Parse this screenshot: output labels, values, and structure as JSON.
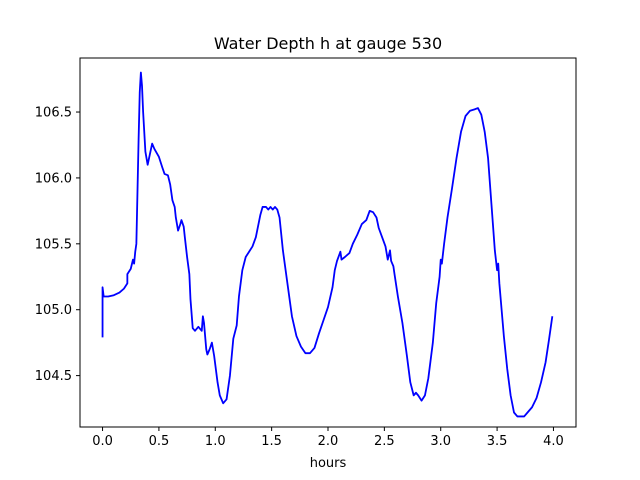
{
  "chart_data": {
    "type": "line",
    "title": "Water Depth h at gauge 530",
    "xlabel": "hours",
    "ylabel": "",
    "xlim": [
      -0.2,
      4.2
    ],
    "ylim": [
      104.11,
      106.91
    ],
    "xticks": [
      0.0,
      0.5,
      1.0,
      1.5,
      2.0,
      2.5,
      3.0,
      3.5,
      4.0
    ],
    "xtick_labels": [
      "0.0",
      "0.5",
      "1.0",
      "1.5",
      "2.0",
      "2.5",
      "3.0",
      "3.5",
      "4.0"
    ],
    "yticks": [
      104.5,
      105.0,
      105.5,
      106.0,
      106.5
    ],
    "ytick_labels": [
      "104.5",
      "105.0",
      "105.5",
      "106.0",
      "106.5"
    ],
    "grid": false,
    "series": [
      {
        "color": "#0000ff",
        "points": [
          [
            0.0,
            104.79
          ],
          [
            0.0,
            105.17
          ],
          [
            0.01,
            105.1
          ],
          [
            0.05,
            105.1
          ],
          [
            0.1,
            105.11
          ],
          [
            0.15,
            105.13
          ],
          [
            0.19,
            105.16
          ],
          [
            0.22,
            105.2
          ],
          [
            0.22,
            105.27
          ],
          [
            0.25,
            105.31
          ],
          [
            0.27,
            105.38
          ],
          [
            0.28,
            105.35
          ],
          [
            0.29,
            105.44
          ],
          [
            0.3,
            105.5
          ],
          [
            0.31,
            105.9
          ],
          [
            0.32,
            106.3
          ],
          [
            0.33,
            106.65
          ],
          [
            0.34,
            106.8
          ],
          [
            0.35,
            106.7
          ],
          [
            0.36,
            106.5
          ],
          [
            0.38,
            106.2
          ],
          [
            0.4,
            106.1
          ],
          [
            0.42,
            106.18
          ],
          [
            0.44,
            106.26
          ],
          [
            0.46,
            106.22
          ],
          [
            0.5,
            106.16
          ],
          [
            0.53,
            106.08
          ],
          [
            0.55,
            106.03
          ],
          [
            0.58,
            106.02
          ],
          [
            0.6,
            105.95
          ],
          [
            0.62,
            105.83
          ],
          [
            0.64,
            105.78
          ],
          [
            0.65,
            105.7
          ],
          [
            0.67,
            105.6
          ],
          [
            0.69,
            105.65
          ],
          [
            0.7,
            105.68
          ],
          [
            0.72,
            105.63
          ],
          [
            0.73,
            105.55
          ],
          [
            0.75,
            105.4
          ],
          [
            0.77,
            105.27
          ],
          [
            0.78,
            105.08
          ],
          [
            0.8,
            104.86
          ],
          [
            0.82,
            104.84
          ],
          [
            0.85,
            104.87
          ],
          [
            0.88,
            104.84
          ],
          [
            0.89,
            104.95
          ],
          [
            0.9,
            104.9
          ],
          [
            0.92,
            104.7
          ],
          [
            0.93,
            104.66
          ],
          [
            0.95,
            104.7
          ],
          [
            0.97,
            104.75
          ],
          [
            0.99,
            104.65
          ],
          [
            1.02,
            104.45
          ],
          [
            1.04,
            104.35
          ],
          [
            1.07,
            104.29
          ],
          [
            1.1,
            104.32
          ],
          [
            1.13,
            104.5
          ],
          [
            1.16,
            104.78
          ],
          [
            1.19,
            104.88
          ],
          [
            1.21,
            105.1
          ],
          [
            1.24,
            105.3
          ],
          [
            1.27,
            105.4
          ],
          [
            1.3,
            105.44
          ],
          [
            1.33,
            105.48
          ],
          [
            1.36,
            105.55
          ],
          [
            1.4,
            105.72
          ],
          [
            1.42,
            105.78
          ],
          [
            1.45,
            105.78
          ],
          [
            1.47,
            105.76
          ],
          [
            1.49,
            105.78
          ],
          [
            1.51,
            105.76
          ],
          [
            1.53,
            105.78
          ],
          [
            1.55,
            105.76
          ],
          [
            1.57,
            105.7
          ],
          [
            1.6,
            105.45
          ],
          [
            1.64,
            105.2
          ],
          [
            1.68,
            104.95
          ],
          [
            1.72,
            104.8
          ],
          [
            1.76,
            104.72
          ],
          [
            1.8,
            104.67
          ],
          [
            1.84,
            104.67
          ],
          [
            1.88,
            104.71
          ],
          [
            1.92,
            104.82
          ],
          [
            1.96,
            104.92
          ],
          [
            2.0,
            105.02
          ],
          [
            2.04,
            105.17
          ],
          [
            2.06,
            105.3
          ],
          [
            2.08,
            105.37
          ],
          [
            2.11,
            105.44
          ],
          [
            2.12,
            105.38
          ],
          [
            2.15,
            105.4
          ],
          [
            2.19,
            105.43
          ],
          [
            2.22,
            105.5
          ],
          [
            2.26,
            105.57
          ],
          [
            2.3,
            105.65
          ],
          [
            2.34,
            105.68
          ],
          [
            2.37,
            105.75
          ],
          [
            2.4,
            105.74
          ],
          [
            2.43,
            105.7
          ],
          [
            2.45,
            105.62
          ],
          [
            2.48,
            105.55
          ],
          [
            2.51,
            105.48
          ],
          [
            2.53,
            105.38
          ],
          [
            2.55,
            105.45
          ],
          [
            2.56,
            105.37
          ],
          [
            2.58,
            105.33
          ],
          [
            2.59,
            105.27
          ],
          [
            2.62,
            105.1
          ],
          [
            2.66,
            104.9
          ],
          [
            2.7,
            104.65
          ],
          [
            2.73,
            104.45
          ],
          [
            2.76,
            104.35
          ],
          [
            2.78,
            104.37
          ],
          [
            2.8,
            104.35
          ],
          [
            2.83,
            104.31
          ],
          [
            2.86,
            104.35
          ],
          [
            2.89,
            104.48
          ],
          [
            2.93,
            104.75
          ],
          [
            2.96,
            105.05
          ],
          [
            2.99,
            105.25
          ],
          [
            3.0,
            105.38
          ],
          [
            3.01,
            105.35
          ],
          [
            3.03,
            105.5
          ],
          [
            3.06,
            105.7
          ],
          [
            3.1,
            105.92
          ],
          [
            3.14,
            106.15
          ],
          [
            3.18,
            106.35
          ],
          [
            3.22,
            106.47
          ],
          [
            3.26,
            106.51
          ],
          [
            3.3,
            106.52
          ],
          [
            3.33,
            106.53
          ],
          [
            3.36,
            106.48
          ],
          [
            3.39,
            106.35
          ],
          [
            3.42,
            106.15
          ],
          [
            3.45,
            105.8
          ],
          [
            3.48,
            105.45
          ],
          [
            3.5,
            105.3
          ],
          [
            3.51,
            105.35
          ],
          [
            3.52,
            105.2
          ],
          [
            3.54,
            105.0
          ],
          [
            3.56,
            104.8
          ],
          [
            3.59,
            104.55
          ],
          [
            3.62,
            104.35
          ],
          [
            3.65,
            104.22
          ],
          [
            3.68,
            104.19
          ],
          [
            3.71,
            104.19
          ],
          [
            3.74,
            104.19
          ],
          [
            3.77,
            104.22
          ],
          [
            3.81,
            104.26
          ],
          [
            3.85,
            104.33
          ],
          [
            3.89,
            104.45
          ],
          [
            3.93,
            104.6
          ],
          [
            3.96,
            104.77
          ],
          [
            3.99,
            104.95
          ]
        ]
      }
    ]
  }
}
